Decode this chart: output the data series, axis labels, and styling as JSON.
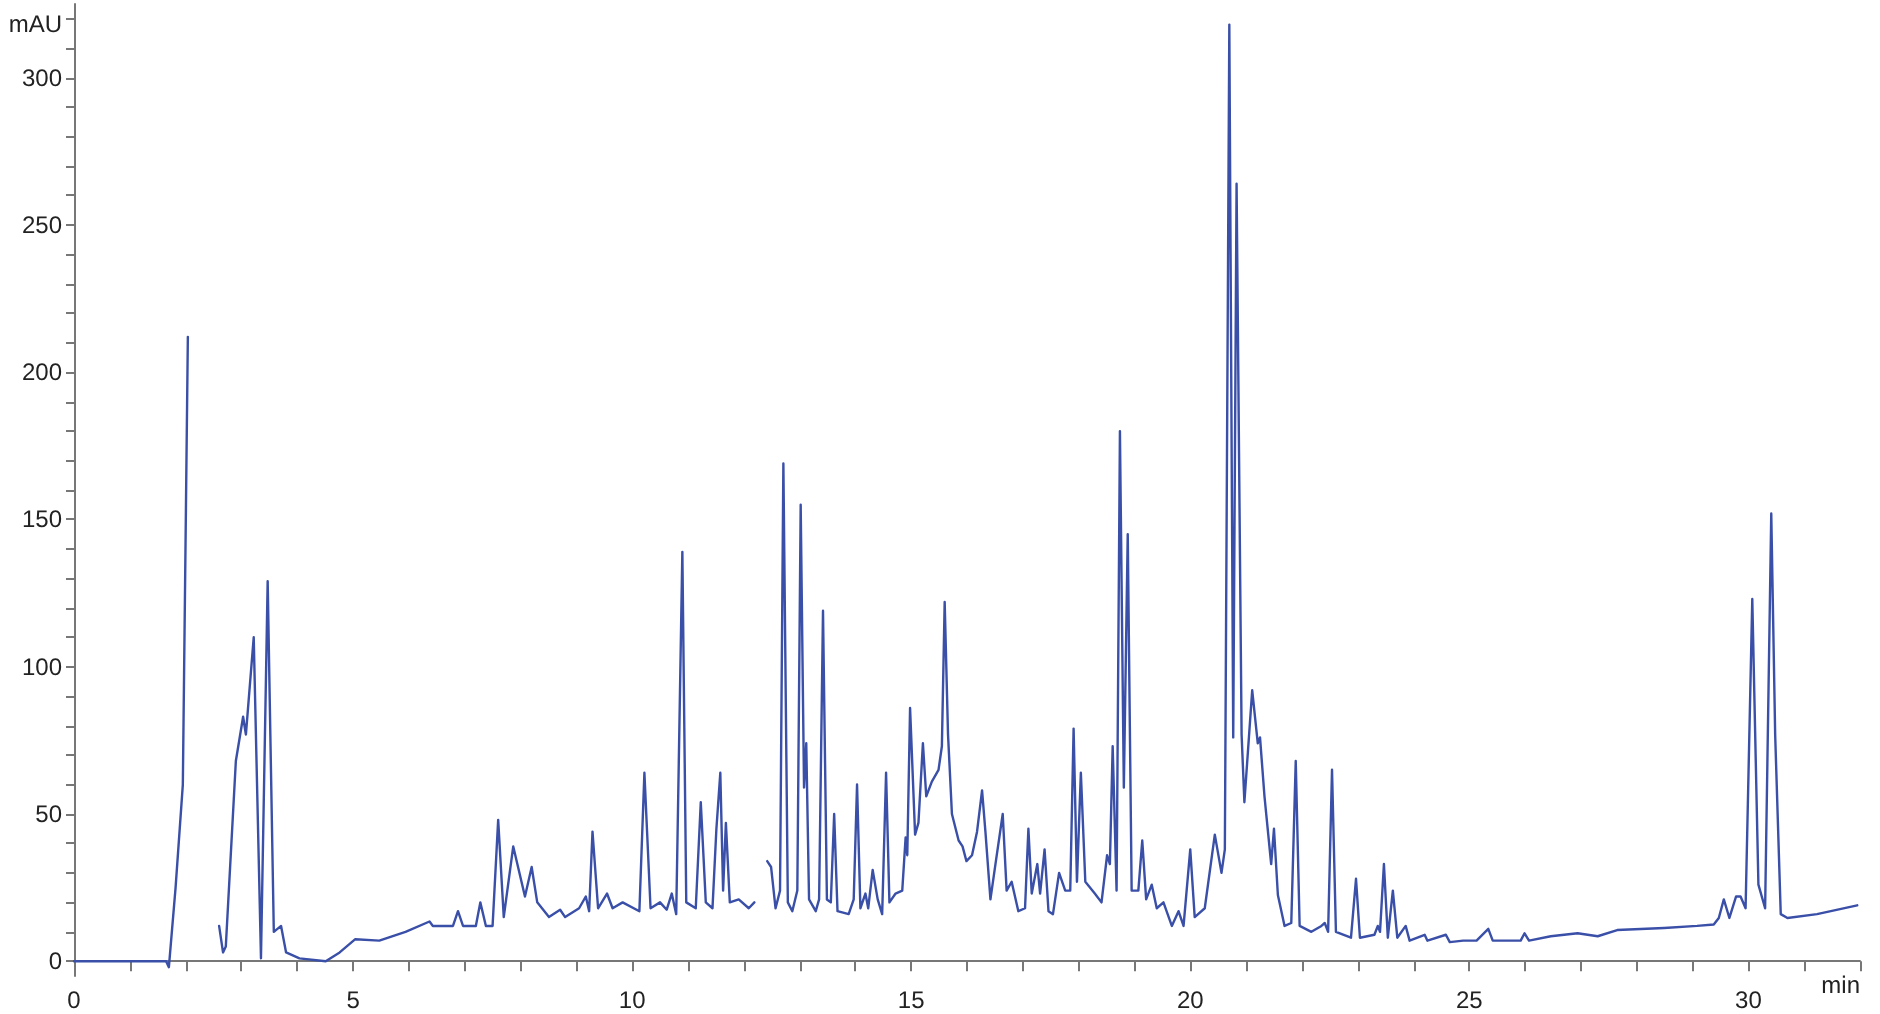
{
  "chart_data": {
    "type": "line",
    "xlabel": "min",
    "ylabel": "mAU",
    "xlim": [
      0,
      32
    ],
    "ylim": [
      -5,
      325
    ],
    "grid": false,
    "marker": "none",
    "line_style": "solid",
    "xticks": [
      0,
      {
        "value": 1,
        "label": null
      },
      {
        "value": 2,
        "label": null
      },
      {
        "value": 3,
        "label": null
      },
      {
        "value": 4,
        "label": null
      },
      5,
      {
        "value": 6,
        "label": null
      },
      {
        "value": 7,
        "label": null
      },
      {
        "value": 8,
        "label": null
      },
      {
        "value": 9,
        "label": null
      },
      10,
      {
        "value": 11,
        "label": null
      },
      {
        "value": 12,
        "label": null
      },
      {
        "value": 13,
        "label": null
      },
      {
        "value": 14,
        "label": null
      },
      15,
      {
        "value": 16,
        "label": null
      },
      {
        "value": 17,
        "label": null
      },
      {
        "value": 18,
        "label": null
      },
      {
        "value": 19,
        "label": null
      },
      20,
      {
        "value": 21,
        "label": null
      },
      {
        "value": 22,
        "label": null
      },
      {
        "value": 23,
        "label": null
      },
      {
        "value": 24,
        "label": null
      },
      25,
      {
        "value": 26,
        "label": null
      },
      {
        "value": 27,
        "label": null
      },
      {
        "value": 28,
        "label": null
      },
      {
        "value": 29,
        "label": null
      },
      30,
      {
        "value": 31,
        "label": null
      },
      {
        "value": 32,
        "label": null
      }
    ],
    "yticks": [
      0,
      {
        "value": 10,
        "label": null
      },
      {
        "value": 20,
        "label": null
      },
      {
        "value": 30,
        "label": null
      },
      {
        "value": 40,
        "label": null
      },
      50,
      {
        "value": 60,
        "label": null
      },
      {
        "value": 70,
        "label": null
      },
      {
        "value": 80,
        "label": null
      },
      {
        "value": 90,
        "label": null
      },
      100,
      {
        "value": 110,
        "label": null
      },
      {
        "value": 120,
        "label": null
      },
      {
        "value": 130,
        "label": null
      },
      {
        "value": 140,
        "label": null
      },
      150,
      {
        "value": 160,
        "label": null
      },
      {
        "value": 170,
        "label": null
      },
      {
        "value": 180,
        "label": null
      },
      {
        "value": 190,
        "label": null
      },
      200,
      {
        "value": 210,
        "label": null
      },
      {
        "value": 220,
        "label": null
      },
      {
        "value": 230,
        "label": null
      },
      {
        "value": 240,
        "label": null
      },
      250,
      {
        "value": 260,
        "label": null
      },
      {
        "value": 270,
        "label": null
      },
      {
        "value": 280,
        "label": null
      },
      {
        "value": 290,
        "label": null
      },
      300,
      {
        "value": 310,
        "label": null
      },
      {
        "value": 320,
        "label": null
      }
    ],
    "series": [
      {
        "color": "#3a4fa8",
        "x": [
          0,
          1.65,
          1.7,
          1.82,
          1.95,
          2.04,
          2.13,
          2.5,
          2.6,
          2.67,
          2.72,
          2.9,
          3.03,
          3.08,
          3.22,
          3.35,
          3.47,
          3.58,
          3.71,
          3.8,
          4.04,
          4.51,
          4.76,
          5.04,
          5.47,
          5.94,
          6.37,
          6.43,
          6.79,
          6.88,
          6.97,
          7.2,
          7.28,
          7.38,
          7.5,
          7.6,
          7.7,
          7.87,
          8.08,
          8.2,
          8.3,
          8.51,
          8.71,
          8.8,
          9.05,
          9.17,
          9.23,
          9.29,
          9.39,
          9.55,
          9.65,
          9.83,
          10.13,
          10.22,
          10.33,
          10.5,
          10.62,
          10.71,
          10.79,
          10.9,
          10.97,
          11.14,
          11.23,
          11.32,
          11.44,
          11.51,
          11.58,
          11.63,
          11.68,
          11.75,
          11.91,
          12.09,
          12.19,
          12.27,
          12.34,
          12.42,
          12.49,
          12.57,
          12.65,
          12.71,
          12.79,
          12.87,
          12.96,
          13.02,
          13.08,
          13.12,
          13.17,
          13.29,
          13.35,
          13.42,
          13.49,
          13.56,
          13.62,
          13.68,
          13.88,
          13.97,
          14.03,
          14.09,
          14.18,
          14.23,
          14.31,
          14.4,
          14.48,
          14.55,
          14.61,
          14.72,
          14.84,
          14.9,
          14.93,
          14.98,
          15.07,
          15.13,
          15.21,
          15.27,
          15.37,
          15.49,
          15.55,
          15.6,
          15.66,
          15.73,
          15.85,
          15.92,
          15.99,
          16.09,
          16.18,
          16.27,
          16.33,
          16.42,
          16.51,
          16.64,
          16.71,
          16.8,
          16.92,
          17.04,
          17.1,
          17.16,
          17.26,
          17.31,
          17.39,
          17.46,
          17.54,
          17.65,
          17.76,
          17.85,
          17.91,
          17.97,
          18.04,
          18.12,
          18.29,
          18.41,
          18.51,
          18.56,
          18.61,
          18.68,
          18.74,
          18.81,
          18.88,
          18.95,
          19.07,
          19.14,
          19.21,
          19.31,
          19.4,
          19.52,
          19.67,
          19.79,
          19.88,
          20,
          20.08,
          20.26,
          20.44,
          20.56,
          20.62,
          20.7,
          20.77,
          20.83,
          20.92,
          20.97,
          21.11,
          21.21,
          21.25,
          21.33,
          21.45,
          21.5,
          21.57,
          21.69,
          21.81,
          21.89,
          21.96,
          22.17,
          22.35,
          22.41,
          22.47,
          22.54,
          22.61,
          22.88,
          22.97,
          23.04,
          23.3,
          23.36,
          23.4,
          23.47,
          23.54,
          23.63,
          23.71,
          23.86,
          23.93,
          24.2,
          24.25,
          24.58,
          24.65,
          24.89,
          25.13,
          25.34,
          25.42,
          25.92,
          25.99,
          26.07,
          26.46,
          26.94,
          27.3,
          27.65,
          28.49,
          29.08,
          29.38,
          29.47,
          29.56,
          29.66,
          29.78,
          29.86,
          29.95,
          30.07,
          30.18,
          30.3,
          30.41,
          30.48,
          30.58,
          30.7,
          31.23,
          31.95
        ],
        "values": [
          0,
          0,
          -2,
          25,
          60,
          212,
          null,
          null,
          12,
          3,
          5,
          68,
          83,
          77,
          110,
          1,
          129,
          10,
          12,
          3,
          1,
          0,
          3,
          7.5,
          7,
          10,
          13.5,
          12,
          12,
          17,
          12,
          12,
          20,
          12,
          12,
          48,
          15,
          39,
          22,
          32,
          20,
          15,
          17.5,
          15,
          18,
          22,
          17,
          44,
          18,
          23,
          18,
          20,
          17,
          64,
          18,
          20,
          17.5,
          23,
          16,
          139,
          20,
          18,
          54,
          20,
          18,
          45,
          64,
          24,
          47,
          20,
          21,
          18,
          20,
          null,
          null,
          34,
          32,
          18,
          24,
          169,
          20,
          17,
          24,
          155,
          59,
          74,
          21,
          17,
          21,
          119,
          21,
          20,
          50,
          17,
          16,
          21,
          60,
          18,
          23,
          18,
          31,
          21,
          16,
          64,
          20,
          23,
          24,
          42,
          36,
          86,
          43,
          47,
          74,
          56,
          61,
          65,
          73,
          122,
          77,
          50,
          41,
          39,
          34,
          36,
          44,
          58,
          44,
          21,
          33,
          50,
          24,
          27,
          17,
          18,
          45,
          23,
          33,
          23,
          38,
          17,
          16,
          30,
          24,
          24,
          79,
          27,
          64,
          27,
          23,
          20,
          36,
          33,
          73,
          24,
          180,
          59,
          145,
          24,
          24,
          41,
          21,
          26,
          18,
          20,
          12,
          17,
          12,
          38,
          15,
          18,
          43,
          30,
          38,
          318,
          76,
          264,
          77,
          54,
          92,
          74,
          76,
          56,
          33,
          45,
          22.5,
          12,
          13,
          68,
          12,
          10,
          12,
          13,
          10,
          65,
          10,
          8,
          28,
          8,
          9,
          12,
          10,
          33,
          8,
          24,
          8,
          12,
          7,
          9,
          7,
          9,
          6.5,
          7,
          7,
          11,
          7,
          7,
          9.5,
          7,
          8.5,
          9.5,
          8.5,
          10.6,
          11.3,
          12,
          12.5,
          14.7,
          21,
          14.7,
          22,
          22,
          18,
          123,
          26,
          18,
          152,
          77,
          16,
          14.7,
          16,
          19
        ]
      }
    ]
  }
}
